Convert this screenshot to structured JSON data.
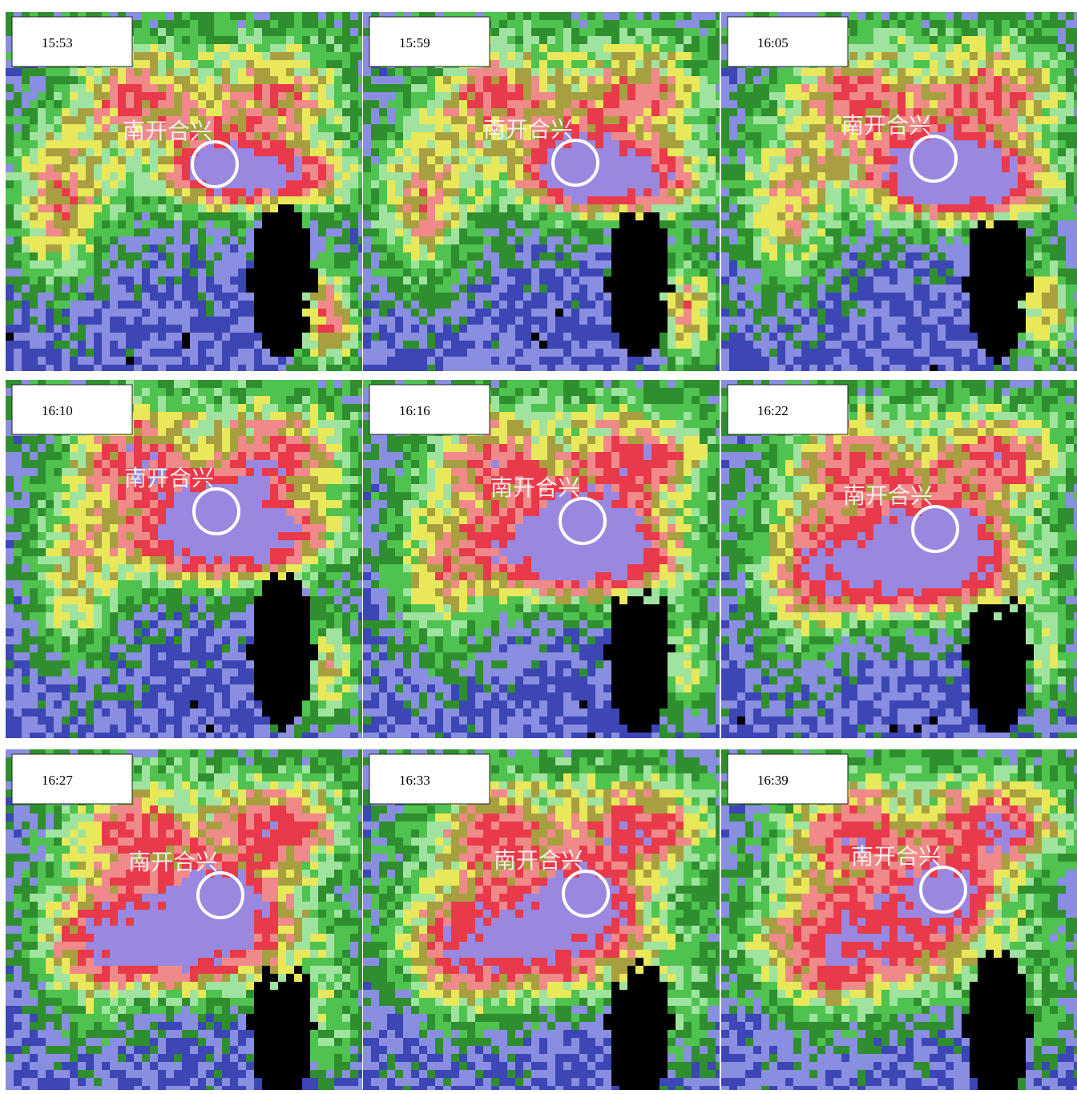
{
  "panels": [
    {
      "time": "15:53",
      "place": "南开合兴"
    },
    {
      "time": "15:59",
      "place": "南开合兴"
    },
    {
      "time": "16:05",
      "place": "南开合兴"
    },
    {
      "time": "16:10",
      "place": "南开合兴"
    },
    {
      "time": "16:16",
      "place": "南开合兴"
    },
    {
      "time": "16:22",
      "place": "南开合兴"
    },
    {
      "time": "16:27",
      "place": "南开合兴"
    },
    {
      "time": "16:33",
      "place": "南开合兴"
    },
    {
      "time": "16:39",
      "place": "南开合兴"
    }
  ]
}
